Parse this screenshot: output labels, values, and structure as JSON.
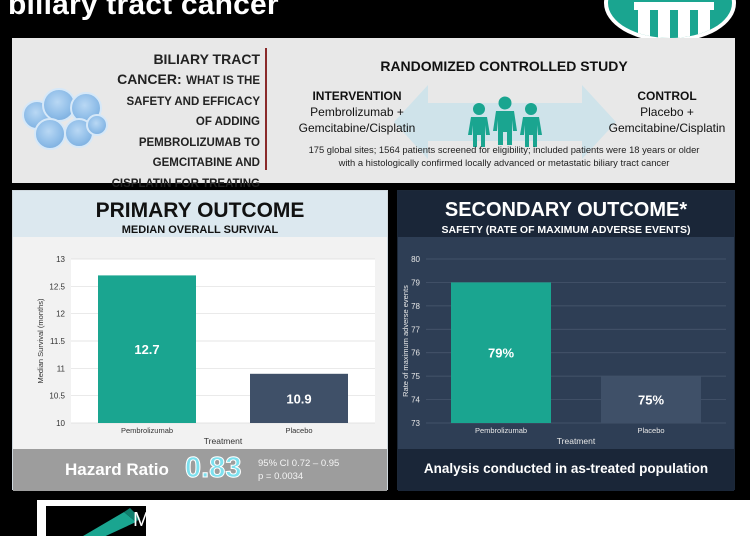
{
  "header": {
    "title": "biliary tract cancer"
  },
  "study": {
    "question_big": "BILIARY TRACT CANCER:",
    "question_rest": "WHAT IS THE SAFETY AND EFFICACY OF ADDING PEMBROLIZUMAB TO GEMCITABINE AND CISPLATIN FOR TREATING BILIARY TRACT CANCER?",
    "design_title": "RANDOMIZED CONTROLLED STUDY",
    "intervention_heading": "INTERVENTION",
    "intervention_line1": "Pembrolizumab +",
    "intervention_line2": "Gemcitabine/Cisplatin",
    "control_heading": "CONTROL",
    "control_line1": "Placebo +",
    "control_line2": "Gemcitabine/Cisplatin",
    "sites_line1": "175 global sites; 1564 patients screened for eligibility; included patients were 18 years or older",
    "sites_line2": "with a histologically confirmed locally advanced or metastatic biliary tract cancer"
  },
  "primary": {
    "title": "PRIMARY OUTCOME",
    "subtitle": "MEDIAN OVERALL SURVIVAL",
    "hr_label": "Hazard Ratio",
    "hr_value": "0.83",
    "ci": "95% CI 0.72 – 0.95",
    "p": "p = 0.0034"
  },
  "secondary": {
    "title": "SECONDARY OUTCOME*",
    "subtitle": "SAFETY (RATE OF MAXIMUM ADVERSE EVENTS)",
    "footer": "Analysis conducted in as-treated population"
  },
  "colors": {
    "teal": "#1aa590",
    "slate": "#3f5068"
  },
  "chart_data": [
    {
      "type": "bar",
      "categories": [
        "Pembrolizumab",
        "Placebo"
      ],
      "values": [
        12.7,
        10.9
      ],
      "value_labels": [
        "12.7",
        "10.9"
      ],
      "yticks": [
        "13",
        "12.5",
        "12",
        "11.5",
        "11",
        "10.5",
        "10"
      ],
      "ylim": [
        10,
        13
      ],
      "xlabel": "Treatment",
      "ylabel": "Median Survival (months)",
      "grid": true
    },
    {
      "type": "bar",
      "categories": [
        "Pembrolizumab",
        "Placebo"
      ],
      "values": [
        79,
        75
      ],
      "value_labels": [
        "79%",
        "75%"
      ],
      "yticks": [
        "80",
        "79",
        "78",
        "77",
        "76",
        "75",
        "74",
        "73"
      ],
      "ylim": [
        73,
        80
      ],
      "xlabel": "Treatment",
      "ylabel": "Rate of maximum adverse events",
      "grid": true
    }
  ],
  "conclusion": {
    "text": "Median overall survival was greater in the pembrolizumab"
  }
}
